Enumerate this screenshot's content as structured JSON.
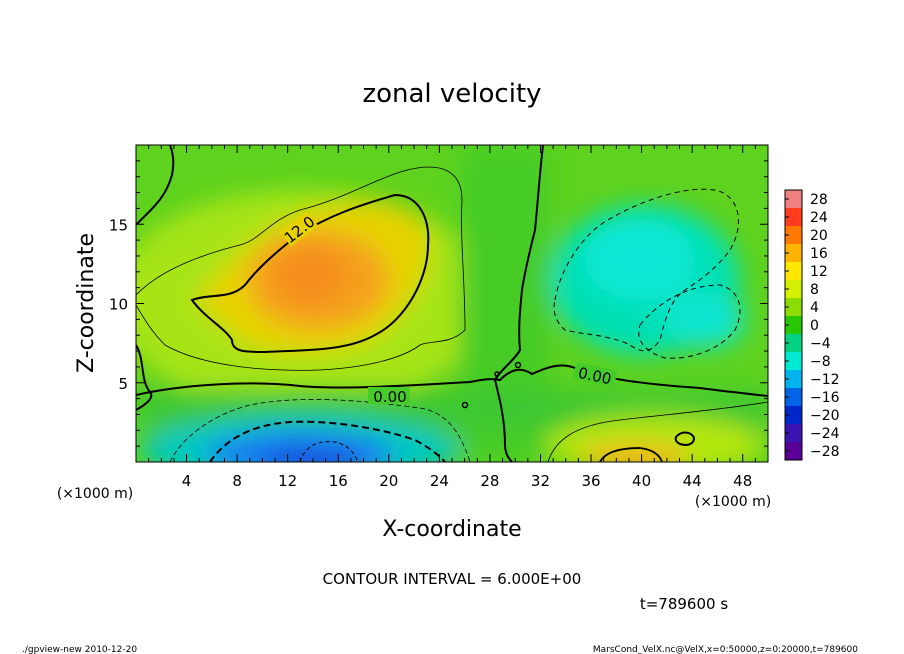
{
  "chart_data": {
    "type": "heatmap",
    "title": "zonal velocity",
    "xlabel": "X-coordinate",
    "ylabel": "Z-coordinate",
    "x_unit": "(×1000 m)",
    "y_unit": "(×1000 m)",
    "xlim": [
      0,
      50
    ],
    "ylim": [
      0,
      20
    ],
    "x_ticks": [
      4,
      8,
      12,
      16,
      20,
      24,
      28,
      32,
      36,
      40,
      44,
      48
    ],
    "y_ticks": [
      5,
      10,
      15
    ],
    "contour_labels": [
      "12.0",
      "0.00",
      "0.00"
    ],
    "colorbar": {
      "levels": [
        28,
        24,
        20,
        16,
        12,
        8,
        4,
        0,
        -4,
        -8,
        -12,
        -16,
        -20,
        -24,
        -28
      ],
      "colors": [
        "#f08080",
        "#ff3c1e",
        "#ff7800",
        "#ffb400",
        "#ffe600",
        "#d2f000",
        "#8cdc00",
        "#28c800",
        "#00d282",
        "#00ebd2",
        "#00b4f0",
        "#0064e6",
        "#0028c8",
        "#3c14b4",
        "#5a0096"
      ]
    },
    "contour_interval": "CONTOUR INTERVAL = 6.000E+00",
    "time": "t=789600 s"
  },
  "footer": {
    "left": "./gpview-new  2010-12-20",
    "right": "MarsCond_VelX.nc@VelX,x=0:50000,z=0:20000,t=789600"
  }
}
